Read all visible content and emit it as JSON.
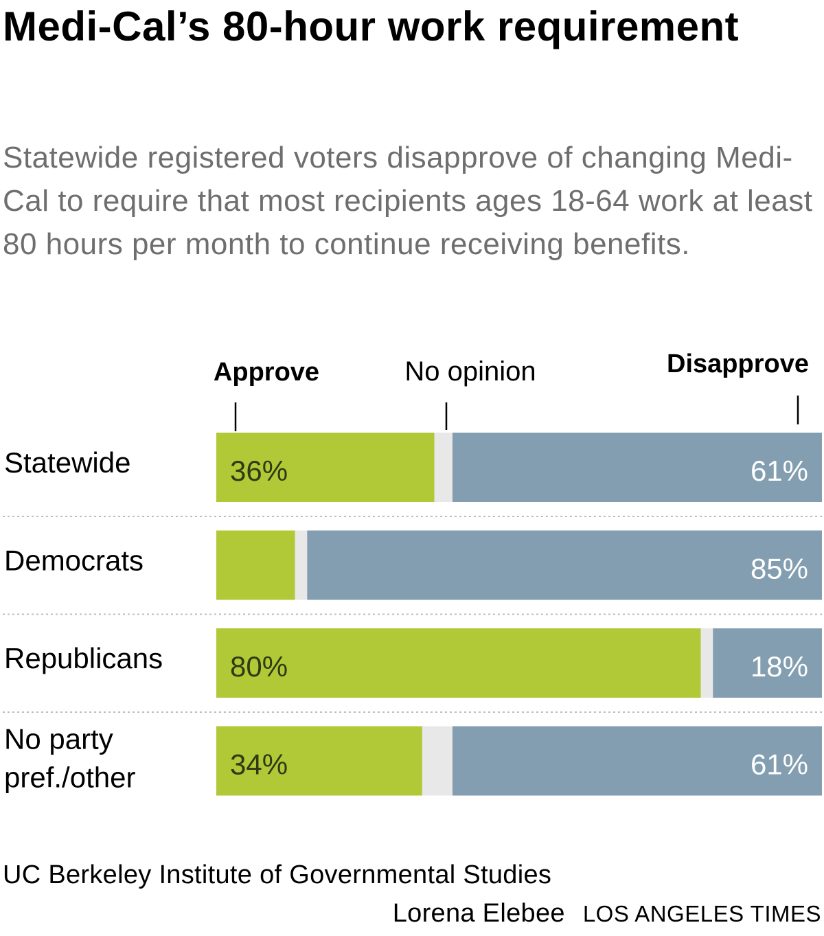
{
  "title": "Medi-Cal’s 80-hour work requirement",
  "subtitle": "Statewide registered voters disapprove of changing Medi-Cal to require that most recipients ages 18-64 work at least 80 hours per month to continue receiving benefits.",
  "colors": {
    "approve": "#b1c837",
    "no_opinion": "#e8e8e8",
    "disapprove": "#839eb0",
    "approve_text": "#2f3a14",
    "disapprove_text": "#ffffff",
    "divider": "#bdbdbd"
  },
  "chart_data": {
    "type": "bar",
    "orientation": "horizontal-stacked-100",
    "legend": [
      "Approve",
      "No opinion",
      "Disapprove"
    ],
    "categories": [
      "Statewide",
      "Democrats",
      "Republicans",
      "No party pref./other"
    ],
    "series": [
      {
        "name": "Approve",
        "values": [
          36,
          13,
          80,
          34
        ]
      },
      {
        "name": "No opinion",
        "values": [
          3,
          2,
          2,
          5
        ]
      },
      {
        "name": "Disapprove",
        "values": [
          61,
          85,
          18,
          61
        ]
      }
    ],
    "labels": {
      "Approve": [
        "36%",
        "",
        "80%",
        "34%"
      ],
      "Disapprove": [
        "61%",
        "85%",
        "18%",
        "61%"
      ]
    },
    "xlim": [
      0,
      100
    ]
  },
  "source": "UC Berkeley Institute of Governmental Studies",
  "credit": "Lorena Elebee",
  "brand": "LOS ANGELES TIMES"
}
